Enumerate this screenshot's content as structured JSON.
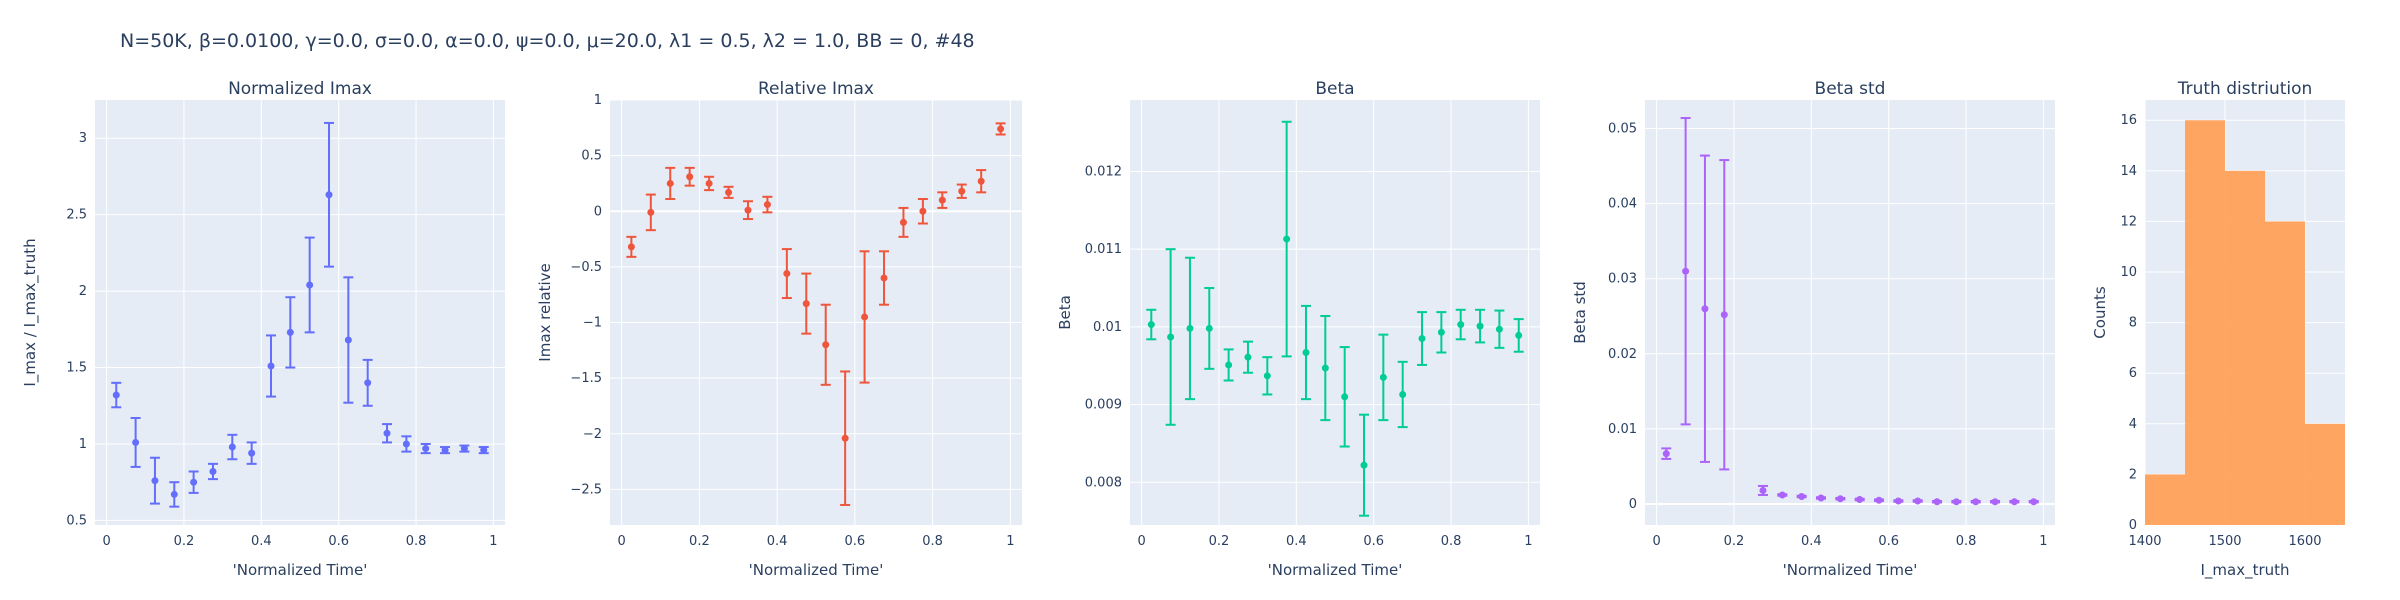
{
  "figure": {
    "title": "N=50K, β=0.0100, γ=0.0, σ=0.0,  α=0.0, ψ=0.0, μ=20.0, λ1 = 0.5, λ2 = 1.0, BB = 0, #48"
  },
  "colors": {
    "plot_bg": "#E5ECF6",
    "grid": "#ffffff",
    "text": "#2a3f5f"
  },
  "chart_data": [
    {
      "type": "scatter",
      "title": "Normalized Imax",
      "xlabel": "'Normalized Time'",
      "ylabel": "I_max / I_max_truth",
      "color": "#636EFA",
      "xlim": [
        -0.03,
        1.03
      ],
      "ylim": [
        0.47,
        3.25
      ],
      "xticks": [
        0,
        0.2,
        0.4,
        0.6,
        0.8,
        1
      ],
      "xticklabels": [
        "0",
        "0.2",
        "0.4",
        "0.6",
        "0.8",
        "1"
      ],
      "yticks": [
        0.5,
        1,
        1.5,
        2,
        2.5,
        3
      ],
      "yticklabels": [
        "0.5",
        "1",
        "1.5",
        "2",
        "2.5",
        "3"
      ],
      "x": [
        0.025,
        0.075,
        0.125,
        0.175,
        0.225,
        0.275,
        0.325,
        0.375,
        0.425,
        0.475,
        0.525,
        0.575,
        0.625,
        0.675,
        0.725,
        0.775,
        0.825,
        0.875,
        0.925,
        0.975
      ],
      "y": [
        1.32,
        1.01,
        0.76,
        0.67,
        0.75,
        0.82,
        0.98,
        0.94,
        1.51,
        1.73,
        2.04,
        2.63,
        1.68,
        1.4,
        1.07,
        1.0,
        0.97,
        0.96,
        0.97,
        0.96
      ],
      "err": [
        0.08,
        0.16,
        0.15,
        0.08,
        0.07,
        0.05,
        0.08,
        0.07,
        0.2,
        0.23,
        0.31,
        0.47,
        0.41,
        0.15,
        0.06,
        0.05,
        0.03,
        0.02,
        0.02,
        0.02
      ]
    },
    {
      "type": "scatter",
      "title": "Relative Imax",
      "xlabel": "'Normalized Time'",
      "ylabel": "Imax relative",
      "color": "#EF553B",
      "xlim": [
        -0.03,
        1.03
      ],
      "ylim": [
        -2.82,
        1.0
      ],
      "xticks": [
        0,
        0.2,
        0.4,
        0.6,
        0.8,
        1
      ],
      "xticklabels": [
        "0",
        "0.2",
        "0.4",
        "0.6",
        "0.8",
        "1"
      ],
      "yticks": [
        -2.5,
        -2,
        -1.5,
        -1,
        -0.5,
        0,
        0.5,
        1
      ],
      "yticklabels": [
        "−2.5",
        "−2",
        "−1.5",
        "−1",
        "−0.5",
        "0",
        "0.5",
        "1"
      ],
      "x": [
        0.025,
        0.075,
        0.125,
        0.175,
        0.225,
        0.275,
        0.325,
        0.375,
        0.425,
        0.475,
        0.525,
        0.575,
        0.625,
        0.675,
        0.725,
        0.775,
        0.825,
        0.875,
        0.925,
        0.975
      ],
      "y": [
        -0.32,
        -0.01,
        0.25,
        0.31,
        0.25,
        0.17,
        0.01,
        0.06,
        -0.56,
        -0.83,
        -1.2,
        -2.04,
        -0.95,
        -0.6,
        -0.1,
        0.0,
        0.1,
        0.18,
        0.27,
        0.74
      ],
      "err": [
        0.09,
        0.16,
        0.14,
        0.08,
        0.06,
        0.05,
        0.08,
        0.07,
        0.22,
        0.27,
        0.36,
        0.6,
        0.59,
        0.24,
        0.13,
        0.11,
        0.07,
        0.06,
        0.1,
        0.05
      ]
    },
    {
      "type": "scatter",
      "title": "Beta",
      "xlabel": "'Normalized Time'",
      "ylabel": "Beta",
      "color": "#00CC96",
      "xlim": [
        -0.03,
        1.03
      ],
      "ylim": [
        0.00745,
        0.01292
      ],
      "xticks": [
        0,
        0.2,
        0.4,
        0.6,
        0.8,
        1
      ],
      "xticklabels": [
        "0",
        "0.2",
        "0.4",
        "0.6",
        "0.8",
        "1"
      ],
      "yticks": [
        0.008,
        0.009,
        0.01,
        0.011,
        0.012
      ],
      "yticklabels": [
        "0.008",
        "0.009",
        "0.01",
        "0.011",
        "0.012"
      ],
      "x": [
        0.025,
        0.075,
        0.125,
        0.175,
        0.225,
        0.275,
        0.325,
        0.375,
        0.425,
        0.475,
        0.525,
        0.575,
        0.625,
        0.675,
        0.725,
        0.775,
        0.825,
        0.875,
        0.925,
        0.975
      ],
      "y": [
        0.01003,
        0.00987,
        0.00998,
        0.00998,
        0.00951,
        0.00961,
        0.00937,
        0.01113,
        0.00967,
        0.00947,
        0.0091,
        0.00822,
        0.00935,
        0.00913,
        0.00985,
        0.00993,
        0.01003,
        0.01001,
        0.00997,
        0.00989
      ],
      "err": [
        0.00019,
        0.00113,
        0.00091,
        0.00052,
        0.0002,
        0.0002,
        0.00024,
        0.00151,
        0.0006,
        0.00067,
        0.00064,
        0.00065,
        0.00055,
        0.00042,
        0.00034,
        0.00026,
        0.00019,
        0.00021,
        0.00024,
        0.00021
      ]
    },
    {
      "type": "scatter",
      "title": "Beta std",
      "xlabel": "'Normalized Time'",
      "ylabel": "Beta std",
      "color": "#AB63FA",
      "xlim": [
        -0.03,
        1.03
      ],
      "ylim": [
        -0.0028,
        0.0538
      ],
      "xticks": [
        0,
        0.2,
        0.4,
        0.6,
        0.8,
        1
      ],
      "xticklabels": [
        "0",
        "0.2",
        "0.4",
        "0.6",
        "0.8",
        "1"
      ],
      "yticks": [
        0,
        0.01,
        0.02,
        0.03,
        0.04,
        0.05
      ],
      "yticklabels": [
        "0",
        "0.01",
        "0.02",
        "0.03",
        "0.04",
        "0.05"
      ],
      "x": [
        0.025,
        0.075,
        0.125,
        0.175,
        0.275,
        0.325,
        0.375,
        0.425,
        0.475,
        0.525,
        0.575,
        0.625,
        0.675,
        0.725,
        0.775,
        0.825,
        0.875,
        0.925,
        0.975
      ],
      "y": [
        0.0067,
        0.031,
        0.026,
        0.0252,
        0.0018,
        0.0012,
        0.001,
        0.0008,
        0.0007,
        0.0006,
        0.0005,
        0.0004,
        0.0004,
        0.0003,
        0.0003,
        0.0003,
        0.0003,
        0.0003,
        0.0003
      ],
      "err": [
        0.0007,
        0.0204,
        0.0204,
        0.0206,
        0.0006,
        0.0001,
        0.0001,
        0.0001,
        0.0001,
        0.0001,
        0.0001,
        0.0001,
        0.0001,
        0.0001,
        0.0001,
        0.0001,
        0.0001,
        0.0001,
        0.0001
      ]
    },
    {
      "type": "bar",
      "title": "Truth distriution",
      "xlabel": "I_max_truth",
      "ylabel": "Counts",
      "color": "#FFA15A",
      "xlim": [
        1400,
        1650
      ],
      "ylim": [
        0,
        16.8
      ],
      "xticks": [
        1400,
        1500,
        1600
      ],
      "xticklabels": [
        "1400",
        "1500",
        "1600"
      ],
      "yticks": [
        0,
        2,
        4,
        6,
        8,
        10,
        12,
        14,
        16
      ],
      "yticklabels": [
        "0",
        "2",
        "4",
        "6",
        "8",
        "10",
        "12",
        "14",
        "16"
      ],
      "bins": [
        [
          1400,
          1450
        ],
        [
          1450,
          1500
        ],
        [
          1500,
          1550
        ],
        [
          1550,
          1600
        ],
        [
          1600,
          1650
        ]
      ],
      "values": [
        2,
        16,
        14,
        12,
        4
      ]
    }
  ]
}
